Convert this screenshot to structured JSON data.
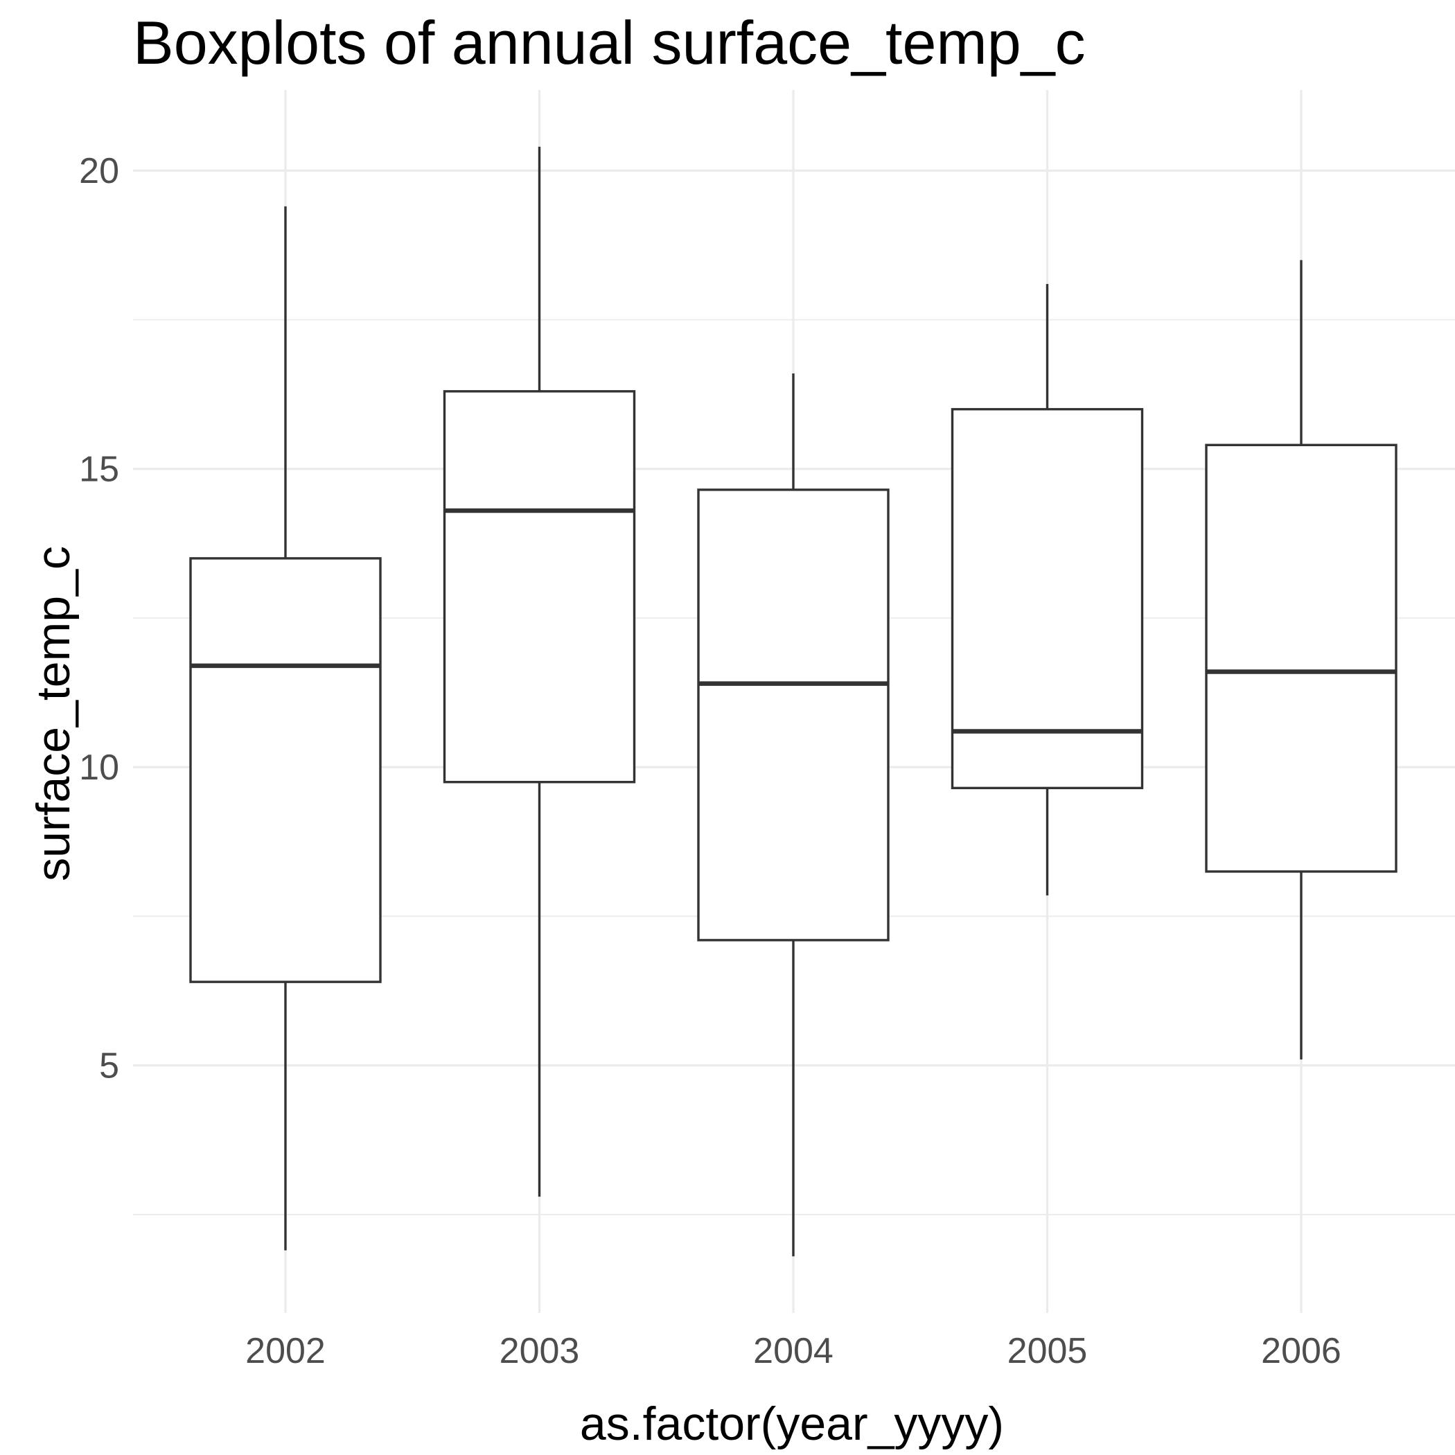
{
  "chart_data": {
    "type": "boxplot",
    "title": "Boxplots of annual surface_temp_c",
    "xlabel": "as.factor(year_yyyy)",
    "ylabel": "surface_temp_c",
    "categories": [
      "2002",
      "2003",
      "2004",
      "2005",
      "2006"
    ],
    "boxes": [
      {
        "category": "2002",
        "lower_whisker": 1.9,
        "q1": 6.4,
        "median": 11.7,
        "q3": 13.5,
        "upper_whisker": 19.4
      },
      {
        "category": "2003",
        "lower_whisker": 2.8,
        "q1": 9.75,
        "median": 14.3,
        "q3": 16.3,
        "upper_whisker": 20.4
      },
      {
        "category": "2004",
        "lower_whisker": 1.8,
        "q1": 7.1,
        "median": 11.4,
        "q3": 14.65,
        "upper_whisker": 16.6
      },
      {
        "category": "2005",
        "lower_whisker": 7.85,
        "q1": 9.65,
        "median": 10.6,
        "q3": 16.0,
        "upper_whisker": 18.1
      },
      {
        "category": "2006",
        "lower_whisker": 5.1,
        "q1": 8.25,
        "median": 11.6,
        "q3": 15.4,
        "upper_whisker": 18.5
      }
    ],
    "y_ticks": [
      5,
      10,
      15,
      20
    ],
    "ylim": [
      0.85,
      21.35
    ],
    "grid": true,
    "legend": "none",
    "colors": {
      "box_line": "#333333",
      "box_fill": "#ffffff",
      "grid": "#ebebeb",
      "tick_text": "#4d4d4d",
      "text": "#000000"
    }
  }
}
